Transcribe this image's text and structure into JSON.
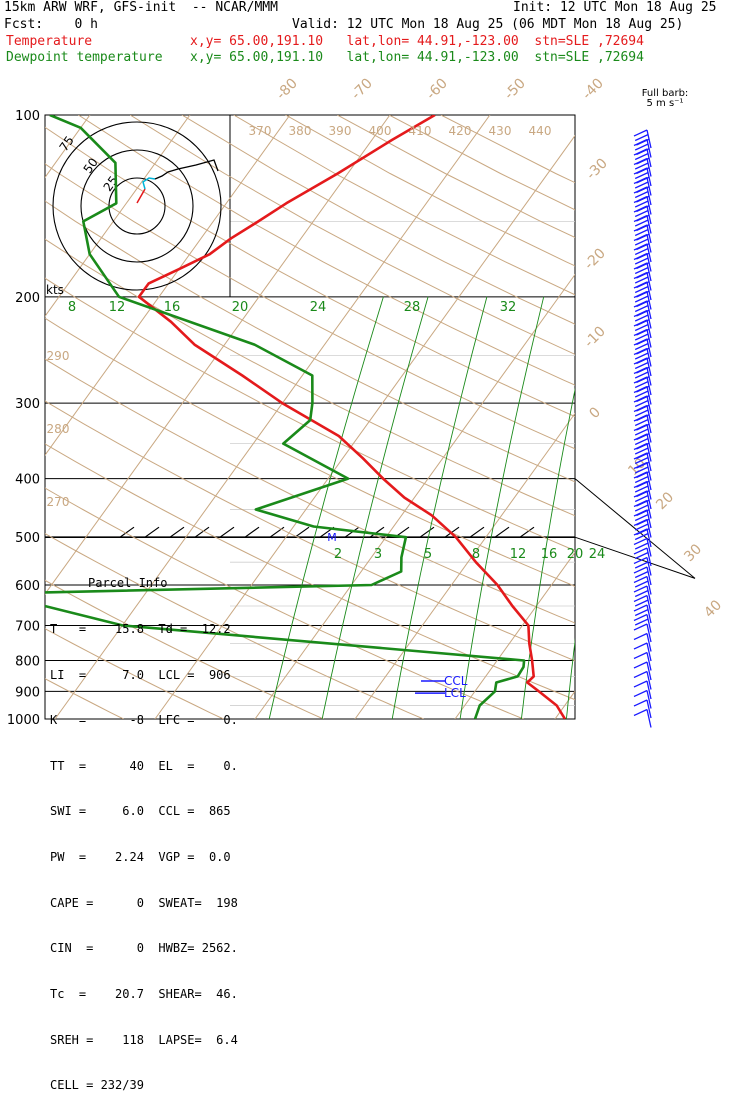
{
  "header": {
    "line1_left": "15km ARW WRF, GFS-init  -- NCAR/MMM",
    "line1_right": "Init: 12 UTC Mon 18 Aug 25",
    "line2_left": "Fcst:    0 h",
    "line2_right": "Valid: 12 UTC Mon 18 Aug 25 (06 MDT Mon 18 Aug 25)",
    "line3_label": "Temperature",
    "line3_info": "x,y= 65.00,191.10   lat,lon= 44.91,-123.00  stn=SLE ,72694",
    "line4_label": "Dewpoint temperature",
    "line4_info": "x,y= 65.00,191.10   lat,lon= 44.91,-123.00  stn=SLE ,72694"
  },
  "colors": {
    "temperature": "#e41a1c",
    "dewpoint": "#1a8a1a",
    "isotherm": "#c9a882",
    "mixing_ratio": "#1a8a1a",
    "wind_barb": "#1a1aff",
    "hodo_cyan": "#00b4d8"
  },
  "chart_data": {
    "type": "line",
    "chart_kind": "Skew-T log-P sounding",
    "y_axis": {
      "scale": "log",
      "unit": "hPa",
      "range": [
        1000,
        100
      ],
      "tick_labels": [
        "100",
        "200",
        "300",
        "400",
        "500",
        "600",
        "700",
        "800",
        "900",
        "1000"
      ]
    },
    "isotherm_labels": [
      "-80",
      "-70",
      "-60",
      "-50",
      "-40",
      "-30",
      "-20",
      "-10",
      "0",
      "10",
      "20",
      "30",
      "40"
    ],
    "theta_labels": [
      "370",
      "380",
      "390",
      "400",
      "410",
      "420",
      "430",
      "440"
    ],
    "theta_side_labels": [
      "290",
      "280",
      "270"
    ],
    "mixing_ratio_upper_labels": [
      "8",
      "12",
      "16",
      "20",
      "24",
      "28",
      "32"
    ],
    "mixing_ratio_lower_labels": [
      "2",
      "3",
      "5",
      "8",
      "12",
      "16",
      "20",
      "24"
    ],
    "series": [
      {
        "name": "Temperature",
        "color": "#e41a1c",
        "points": [
          [
            1000,
            21
          ],
          [
            950,
            19.2
          ],
          [
            900,
            16.4
          ],
          [
            870,
            14.6
          ],
          [
            850,
            14.8
          ],
          [
            800,
            13.5
          ],
          [
            750,
            12
          ],
          [
            700,
            10.6
          ],
          [
            650,
            7.6
          ],
          [
            600,
            4.6
          ],
          [
            550,
            0.8
          ],
          [
            500,
            -3
          ],
          [
            460,
            -7
          ],
          [
            430,
            -11
          ],
          [
            400,
            -14.5
          ],
          [
            370,
            -18
          ],
          [
            340,
            -22
          ],
          [
            300,
            -30
          ],
          [
            270,
            -36
          ],
          [
            240,
            -43
          ],
          [
            220,
            -47
          ],
          [
            200,
            -52
          ],
          [
            190,
            -52
          ],
          [
            180,
            -50
          ],
          [
            170,
            -48
          ],
          [
            160,
            -47
          ],
          [
            150,
            -45.5
          ],
          [
            140,
            -44
          ],
          [
            125,
            -41
          ],
          [
            110,
            -38
          ],
          [
            100,
            -35.5
          ]
        ]
      },
      {
        "name": "Dewpoint temperature",
        "color": "#1a8a1a",
        "points": [
          [
            1000,
            12
          ],
          [
            950,
            11.5
          ],
          [
            900,
            12
          ],
          [
            870,
            11.5
          ],
          [
            850,
            13.2
          ],
          [
            820,
            13.1
          ],
          [
            800,
            12.7
          ],
          [
            700,
            -30
          ],
          [
            620,
            -45
          ],
          [
            600,
            -8
          ],
          [
            570,
            -6
          ],
          [
            540,
            -7
          ],
          [
            500,
            -8
          ],
          [
            480,
            -18
          ],
          [
            450,
            -25
          ],
          [
            400,
            -18
          ],
          [
            350,
            -27
          ],
          [
            320,
            -26
          ],
          [
            300,
            -27
          ],
          [
            270,
            -29
          ],
          [
            240,
            -37
          ],
          [
            200,
            -54
          ],
          [
            170,
            -60
          ],
          [
            150,
            -63
          ],
          [
            140,
            -61
          ],
          [
            120,
            -64
          ],
          [
            105,
            -70
          ],
          [
            100,
            -74
          ]
        ]
      }
    ],
    "annotations": [
      "CCL",
      "LCL",
      "M"
    ],
    "hodograph": {
      "ring_labels": [
        "75",
        "50",
        "25"
      ],
      "unit_label": "kts"
    },
    "wind_barb_legend": {
      "title": "Full barb:",
      "value": "5 m s⁻¹"
    }
  },
  "parcel": {
    "title": "Parcel Info",
    "lines": [
      "T   =    15.8  Td =  12.2",
      "LI  =     7.0  LCL =  906",
      "K   =      -8  LFC =    0.",
      "TT  =      40  EL  =    0.",
      "SWI =     6.0  CCL =  865",
      "PW  =    2.24  VGP =  0.0",
      "CAPE =      0  SWEAT=  198",
      "CIN  =      0  HWBZ= 2562.",
      "Tc  =    20.7  SHEAR=  46.",
      "SREH =    118  LAPSE=  6.4",
      "CELL = 232/39"
    ]
  }
}
